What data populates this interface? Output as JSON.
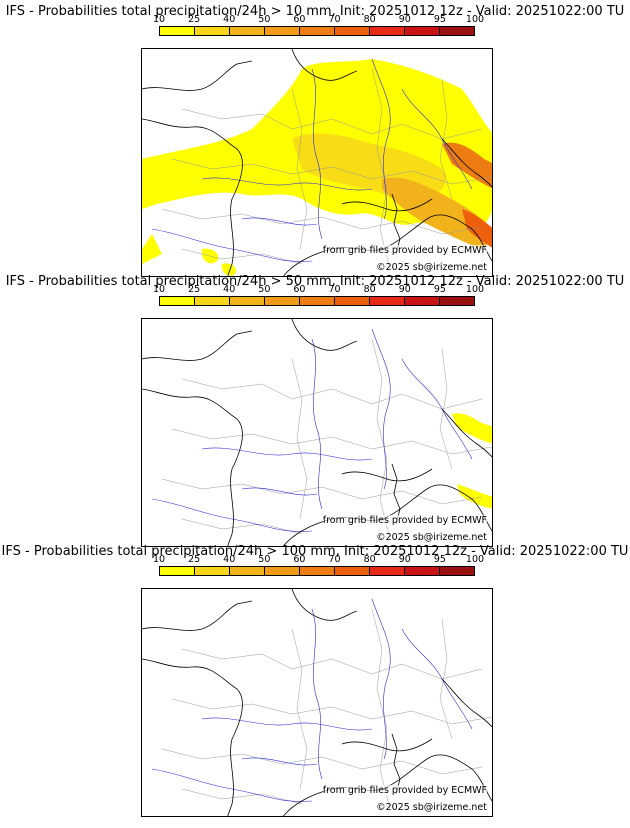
{
  "colorbar": {
    "ticks": [
      "10",
      "25",
      "40",
      "50",
      "60",
      "70",
      "80",
      "90",
      "95",
      "100"
    ],
    "colors": [
      "#ffff00",
      "#f7d61a",
      "#f2b21c",
      "#f09a17",
      "#ed7d12",
      "#ee5f0c",
      "#e62a16",
      "#c81214",
      "#991010",
      "#5a0a0a"
    ]
  },
  "panels": [
    {
      "title": "IFS - Probabilities total precipitation/24h > 10 mm, Init: 20251012 12z - Valid: 20251022:00 TU",
      "source": "from grib files provided by ECMWF",
      "copyright": "©2025 sb@irizeme.net",
      "coverage": "wide"
    },
    {
      "title": "IFS - Probabilities total precipitation/24h > 50 mm, Init: 20251012 12z - Valid: 20251022:00 TU",
      "source": "from grib files provided by ECMWF",
      "copyright": "©2025 sb@irizeme.net",
      "coverage": "small"
    },
    {
      "title": "IFS - Probabilities total precipitation/24h > 100 mm, Init: 20251012 12z - Valid: 20251022:00 TU",
      "source": "from grib files provided by ECMWF",
      "copyright": "©2025 sb@irizeme.net",
      "coverage": "none"
    }
  ]
}
